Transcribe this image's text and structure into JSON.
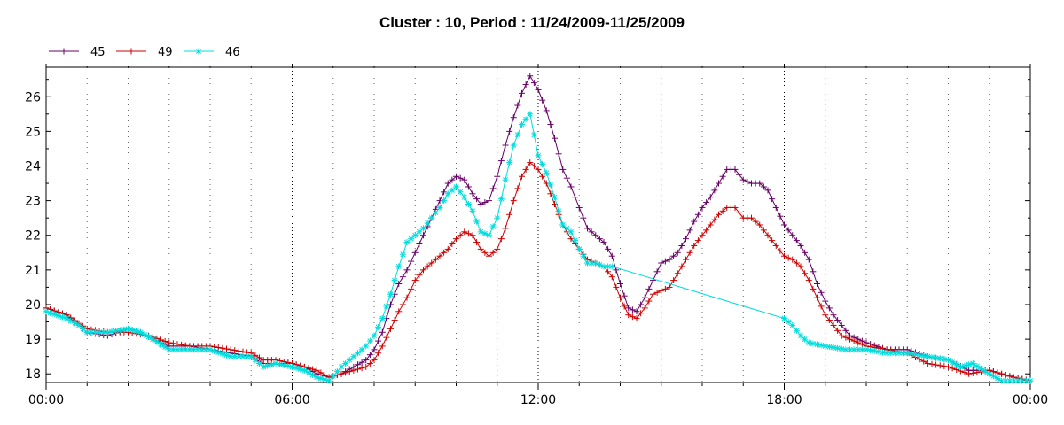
{
  "chart_data": {
    "type": "line",
    "title": "Cluster : 10, Period : 11/24/2009-11/25/2009",
    "xlabel": "",
    "ylabel": "",
    "x_unit": "hours",
    "xlim": [
      0,
      24
    ],
    "ylim": [
      17.75,
      26.85
    ],
    "x_ticks": [
      0,
      6,
      12,
      18,
      24
    ],
    "x_tick_labels": [
      "00:00",
      "06:00",
      "12:00",
      "18:00",
      "00:00"
    ],
    "y_ticks": [
      18,
      19,
      20,
      21,
      22,
      23,
      24,
      25,
      26
    ],
    "y_tick_labels": [
      "18",
      "19",
      "20",
      "21",
      "22",
      "23",
      "24",
      "25",
      "26"
    ],
    "grid": {
      "major_x": true,
      "minor_x": true,
      "y": false
    },
    "legend_position": "top-left",
    "series": [
      {
        "name": "45",
        "color": "#660066",
        "marker": "plus",
        "points": [
          [
            0.0,
            19.9
          ],
          [
            0.5,
            19.7
          ],
          [
            0.8,
            19.4
          ],
          [
            1.0,
            19.2
          ],
          [
            1.5,
            19.1
          ],
          [
            2.0,
            19.3
          ],
          [
            2.3,
            19.2
          ],
          [
            2.6,
            19.0
          ],
          [
            3.0,
            18.8
          ],
          [
            3.5,
            18.8
          ],
          [
            4.0,
            18.7
          ],
          [
            4.5,
            18.6
          ],
          [
            5.0,
            18.5
          ],
          [
            5.3,
            18.3
          ],
          [
            5.6,
            18.3
          ],
          [
            6.0,
            18.3
          ],
          [
            6.3,
            18.2
          ],
          [
            6.6,
            18.0
          ],
          [
            6.9,
            17.9
          ],
          [
            7.2,
            18.0
          ],
          [
            7.5,
            18.2
          ],
          [
            7.8,
            18.4
          ],
          [
            8.0,
            18.7
          ],
          [
            8.2,
            19.2
          ],
          [
            8.4,
            20.0
          ],
          [
            8.6,
            20.6
          ],
          [
            8.8,
            21.0
          ],
          [
            9.0,
            21.5
          ],
          [
            9.2,
            22.0
          ],
          [
            9.4,
            22.5
          ],
          [
            9.6,
            23.0
          ],
          [
            9.8,
            23.5
          ],
          [
            10.0,
            23.7
          ],
          [
            10.2,
            23.6
          ],
          [
            10.4,
            23.2
          ],
          [
            10.6,
            22.9
          ],
          [
            10.8,
            23.0
          ],
          [
            11.0,
            23.7
          ],
          [
            11.2,
            24.6
          ],
          [
            11.4,
            25.4
          ],
          [
            11.6,
            26.1
          ],
          [
            11.8,
            26.6
          ],
          [
            12.0,
            26.2
          ],
          [
            12.2,
            25.6
          ],
          [
            12.4,
            24.8
          ],
          [
            12.6,
            23.9
          ],
          [
            12.8,
            23.4
          ],
          [
            13.0,
            22.8
          ],
          [
            13.2,
            22.2
          ],
          [
            13.4,
            22.0
          ],
          [
            13.6,
            21.8
          ],
          [
            13.8,
            21.4
          ],
          [
            14.0,
            20.6
          ],
          [
            14.2,
            19.9
          ],
          [
            14.4,
            19.8
          ],
          [
            14.6,
            20.2
          ],
          [
            14.8,
            20.7
          ],
          [
            15.0,
            21.2
          ],
          [
            15.2,
            21.3
          ],
          [
            15.4,
            21.5
          ],
          [
            15.6,
            21.9
          ],
          [
            15.8,
            22.4
          ],
          [
            16.0,
            22.8
          ],
          [
            16.2,
            23.1
          ],
          [
            16.4,
            23.5
          ],
          [
            16.6,
            23.9
          ],
          [
            16.8,
            23.9
          ],
          [
            17.0,
            23.6
          ],
          [
            17.2,
            23.5
          ],
          [
            17.4,
            23.5
          ],
          [
            17.6,
            23.3
          ],
          [
            17.8,
            22.8
          ],
          [
            18.0,
            22.3
          ],
          [
            18.2,
            22.0
          ],
          [
            18.4,
            21.7
          ],
          [
            18.6,
            21.3
          ],
          [
            18.8,
            20.6
          ],
          [
            19.0,
            20.1
          ],
          [
            19.2,
            19.7
          ],
          [
            19.4,
            19.4
          ],
          [
            19.6,
            19.1
          ],
          [
            19.8,
            19.0
          ],
          [
            20.0,
            18.9
          ],
          [
            20.5,
            18.7
          ],
          [
            21.0,
            18.7
          ],
          [
            21.5,
            18.5
          ],
          [
            22.0,
            18.4
          ],
          [
            22.5,
            18.1
          ],
          [
            23.0,
            18.1
          ],
          [
            23.3,
            18.0
          ],
          [
            23.6,
            17.9
          ],
          [
            24.0,
            17.8
          ]
        ]
      },
      {
        "name": "49",
        "color": "#cc0000",
        "marker": "plus",
        "points": [
          [
            0.0,
            19.9
          ],
          [
            0.5,
            19.7
          ],
          [
            1.0,
            19.3
          ],
          [
            1.5,
            19.2
          ],
          [
            2.0,
            19.2
          ],
          [
            2.5,
            19.1
          ],
          [
            3.0,
            18.9
          ],
          [
            3.5,
            18.8
          ],
          [
            4.0,
            18.8
          ],
          [
            4.5,
            18.7
          ],
          [
            5.0,
            18.6
          ],
          [
            5.3,
            18.4
          ],
          [
            5.6,
            18.4
          ],
          [
            6.0,
            18.3
          ],
          [
            6.3,
            18.2
          ],
          [
            6.6,
            18.1
          ],
          [
            6.9,
            17.9
          ],
          [
            7.2,
            18.0
          ],
          [
            7.5,
            18.1
          ],
          [
            7.8,
            18.2
          ],
          [
            8.0,
            18.4
          ],
          [
            8.2,
            18.8
          ],
          [
            8.4,
            19.3
          ],
          [
            8.6,
            19.8
          ],
          [
            8.8,
            20.2
          ],
          [
            9.0,
            20.7
          ],
          [
            9.2,
            21.0
          ],
          [
            9.4,
            21.2
          ],
          [
            9.6,
            21.4
          ],
          [
            9.8,
            21.6
          ],
          [
            10.0,
            21.9
          ],
          [
            10.2,
            22.1
          ],
          [
            10.4,
            22.0
          ],
          [
            10.6,
            21.6
          ],
          [
            10.8,
            21.4
          ],
          [
            11.0,
            21.6
          ],
          [
            11.2,
            22.2
          ],
          [
            11.4,
            23.0
          ],
          [
            11.6,
            23.7
          ],
          [
            11.8,
            24.1
          ],
          [
            12.0,
            23.9
          ],
          [
            12.2,
            23.5
          ],
          [
            12.4,
            22.9
          ],
          [
            12.6,
            22.3
          ],
          [
            12.8,
            21.9
          ],
          [
            13.0,
            21.6
          ],
          [
            13.2,
            21.3
          ],
          [
            13.4,
            21.2
          ],
          [
            13.6,
            21.1
          ],
          [
            13.8,
            20.8
          ],
          [
            14.0,
            20.2
          ],
          [
            14.2,
            19.7
          ],
          [
            14.4,
            19.6
          ],
          [
            14.6,
            19.9
          ],
          [
            14.8,
            20.3
          ],
          [
            15.0,
            20.4
          ],
          [
            15.2,
            20.5
          ],
          [
            15.4,
            20.9
          ],
          [
            15.6,
            21.3
          ],
          [
            15.8,
            21.7
          ],
          [
            16.0,
            22.0
          ],
          [
            16.2,
            22.3
          ],
          [
            16.4,
            22.6
          ],
          [
            16.6,
            22.8
          ],
          [
            16.8,
            22.8
          ],
          [
            17.0,
            22.5
          ],
          [
            17.2,
            22.5
          ],
          [
            17.4,
            22.3
          ],
          [
            17.6,
            22.0
          ],
          [
            17.8,
            21.7
          ],
          [
            18.0,
            21.4
          ],
          [
            18.2,
            21.3
          ],
          [
            18.4,
            21.1
          ],
          [
            18.6,
            20.7
          ],
          [
            18.8,
            20.2
          ],
          [
            19.0,
            19.7
          ],
          [
            19.2,
            19.4
          ],
          [
            19.4,
            19.1
          ],
          [
            19.6,
            19.0
          ],
          [
            20.0,
            18.8
          ],
          [
            20.5,
            18.7
          ],
          [
            21.0,
            18.6
          ],
          [
            21.5,
            18.3
          ],
          [
            22.0,
            18.2
          ],
          [
            22.5,
            18.0
          ],
          [
            23.0,
            18.1
          ],
          [
            23.3,
            18.0
          ],
          [
            23.6,
            17.9
          ],
          [
            24.0,
            17.8
          ]
        ]
      },
      {
        "name": "46",
        "color": "#00dddd",
        "marker": "asterisk",
        "points": [
          [
            0.0,
            19.8
          ],
          [
            0.5,
            19.6
          ],
          [
            0.8,
            19.4
          ],
          [
            1.0,
            19.2
          ],
          [
            1.5,
            19.2
          ],
          [
            2.0,
            19.3
          ],
          [
            2.3,
            19.2
          ],
          [
            2.6,
            19.0
          ],
          [
            3.0,
            18.7
          ],
          [
            3.5,
            18.7
          ],
          [
            4.0,
            18.7
          ],
          [
            4.5,
            18.5
          ],
          [
            5.0,
            18.5
          ],
          [
            5.3,
            18.2
          ],
          [
            5.6,
            18.3
          ],
          [
            6.0,
            18.2
          ],
          [
            6.3,
            18.1
          ],
          [
            6.6,
            17.9
          ],
          [
            6.9,
            17.8
          ],
          [
            7.2,
            18.2
          ],
          [
            7.5,
            18.5
          ],
          [
            7.8,
            18.8
          ],
          [
            8.0,
            19.1
          ],
          [
            8.2,
            19.6
          ],
          [
            8.4,
            20.3
          ],
          [
            8.6,
            21.1
          ],
          [
            8.8,
            21.8
          ],
          [
            9.0,
            22.0
          ],
          [
            9.2,
            22.2
          ],
          [
            9.4,
            22.5
          ],
          [
            9.6,
            22.8
          ],
          [
            9.8,
            23.2
          ],
          [
            10.0,
            23.4
          ],
          [
            10.2,
            23.1
          ],
          [
            10.4,
            22.7
          ],
          [
            10.6,
            22.1
          ],
          [
            10.8,
            22.0
          ],
          [
            11.0,
            22.5
          ],
          [
            11.2,
            23.6
          ],
          [
            11.4,
            24.6
          ],
          [
            11.6,
            25.2
          ],
          [
            11.8,
            25.5
          ],
          [
            12.0,
            24.3
          ],
          [
            12.2,
            23.8
          ],
          [
            12.4,
            23.1
          ],
          [
            12.6,
            22.3
          ],
          [
            12.8,
            22.1
          ],
          [
            13.0,
            21.6
          ],
          [
            13.2,
            21.2
          ],
          [
            13.4,
            21.2
          ],
          [
            13.6,
            21.1
          ],
          [
            13.8,
            21.1
          ],
          [
            18.0,
            19.6
          ],
          [
            18.2,
            19.4
          ],
          [
            18.4,
            19.1
          ],
          [
            18.6,
            18.9
          ],
          [
            19.0,
            18.8
          ],
          [
            19.5,
            18.7
          ],
          [
            20.0,
            18.7
          ],
          [
            20.5,
            18.6
          ],
          [
            21.0,
            18.6
          ],
          [
            21.5,
            18.5
          ],
          [
            22.0,
            18.4
          ],
          [
            22.3,
            18.2
          ],
          [
            22.6,
            18.3
          ],
          [
            23.0,
            18.0
          ],
          [
            23.3,
            17.8
          ],
          [
            23.6,
            17.8
          ],
          [
            24.0,
            17.8
          ]
        ]
      }
    ]
  }
}
